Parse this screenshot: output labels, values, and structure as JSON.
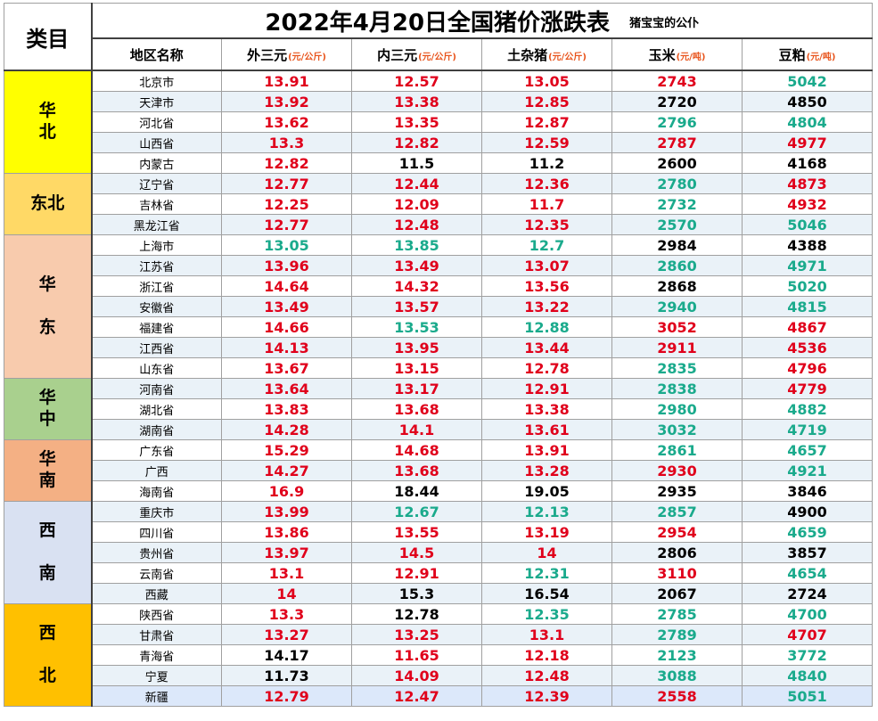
{
  "corner_label": "类目",
  "title": "2022年4月20日全国猪价涨跌表",
  "subtitle": "猪宝宝的公仆",
  "columns": [
    {
      "name": "地区名称",
      "unit": ""
    },
    {
      "name": "外三元",
      "unit": "(元/公斤)"
    },
    {
      "name": "内三元",
      "unit": "(元/公斤)"
    },
    {
      "name": "土杂猪",
      "unit": "(元/公斤)"
    },
    {
      "name": "玉米",
      "unit": "(元/吨)"
    },
    {
      "name": "豆粕",
      "unit": "(元/吨)"
    }
  ],
  "colors": {
    "up": "#e0001b",
    "down": "#1aaa8c",
    "flat": "#000000"
  },
  "regions": [
    {
      "label": "华\n北",
      "color": "#ffff00",
      "rows": 5
    },
    {
      "label": "东北",
      "color": "#ffd966",
      "rows": 3
    },
    {
      "label": "华\n\n东",
      "color": "#f8cbad",
      "rows": 7
    },
    {
      "label": "华\n中",
      "color": "#a9d08e",
      "rows": 3
    },
    {
      "label": "华\n南",
      "color": "#f4b084",
      "rows": 3
    },
    {
      "label": "西\n\n南",
      "color": "#d9e1f2",
      "rows": 5
    },
    {
      "label": "西\n\n北",
      "color": "#ffc000",
      "rows": 5
    }
  ],
  "rows": [
    {
      "province": "北京市",
      "values": [
        [
          "13.91",
          "red"
        ],
        [
          "12.57",
          "red"
        ],
        [
          "13.05",
          "red"
        ],
        [
          "2743",
          "red"
        ],
        [
          "5042",
          "green"
        ]
      ]
    },
    {
      "province": "天津市",
      "values": [
        [
          "13.92",
          "red"
        ],
        [
          "13.38",
          "red"
        ],
        [
          "12.85",
          "red"
        ],
        [
          "2720",
          "black"
        ],
        [
          "4850",
          "black"
        ]
      ]
    },
    {
      "province": "河北省",
      "values": [
        [
          "13.62",
          "red"
        ],
        [
          "13.35",
          "red"
        ],
        [
          "12.87",
          "red"
        ],
        [
          "2796",
          "green"
        ],
        [
          "4804",
          "green"
        ]
      ]
    },
    {
      "province": "山西省",
      "values": [
        [
          "13.3",
          "red"
        ],
        [
          "12.82",
          "red"
        ],
        [
          "12.59",
          "red"
        ],
        [
          "2787",
          "red"
        ],
        [
          "4977",
          "red"
        ]
      ]
    },
    {
      "province": "内蒙古",
      "values": [
        [
          "12.82",
          "red"
        ],
        [
          "11.5",
          "black"
        ],
        [
          "11.2",
          "black"
        ],
        [
          "2600",
          "black"
        ],
        [
          "4168",
          "black"
        ]
      ]
    },
    {
      "province": "辽宁省",
      "values": [
        [
          "12.77",
          "red"
        ],
        [
          "12.44",
          "red"
        ],
        [
          "12.36",
          "red"
        ],
        [
          "2780",
          "green"
        ],
        [
          "4873",
          "red"
        ]
      ]
    },
    {
      "province": "吉林省",
      "values": [
        [
          "12.25",
          "red"
        ],
        [
          "12.09",
          "red"
        ],
        [
          "11.7",
          "red"
        ],
        [
          "2732",
          "green"
        ],
        [
          "4932",
          "red"
        ]
      ]
    },
    {
      "province": "黑龙江省",
      "values": [
        [
          "12.77",
          "red"
        ],
        [
          "12.48",
          "red"
        ],
        [
          "12.35",
          "red"
        ],
        [
          "2570",
          "green"
        ],
        [
          "5046",
          "green"
        ]
      ]
    },
    {
      "province": "上海市",
      "values": [
        [
          "13.05",
          "green"
        ],
        [
          "13.85",
          "green"
        ],
        [
          "12.7",
          "green"
        ],
        [
          "2984",
          "black"
        ],
        [
          "4388",
          "black"
        ]
      ]
    },
    {
      "province": "江苏省",
      "values": [
        [
          "13.96",
          "red"
        ],
        [
          "13.49",
          "red"
        ],
        [
          "13.07",
          "red"
        ],
        [
          "2860",
          "green"
        ],
        [
          "4971",
          "green"
        ]
      ]
    },
    {
      "province": "浙江省",
      "values": [
        [
          "14.64",
          "red"
        ],
        [
          "14.32",
          "red"
        ],
        [
          "13.56",
          "red"
        ],
        [
          "2868",
          "black"
        ],
        [
          "5020",
          "green"
        ]
      ]
    },
    {
      "province": "安徽省",
      "values": [
        [
          "13.49",
          "red"
        ],
        [
          "13.57",
          "red"
        ],
        [
          "13.22",
          "red"
        ],
        [
          "2940",
          "green"
        ],
        [
          "4815",
          "green"
        ]
      ]
    },
    {
      "province": "福建省",
      "values": [
        [
          "14.66",
          "red"
        ],
        [
          "13.53",
          "green"
        ],
        [
          "12.88",
          "green"
        ],
        [
          "3052",
          "red"
        ],
        [
          "4867",
          "red"
        ]
      ]
    },
    {
      "province": "江西省",
      "values": [
        [
          "14.13",
          "red"
        ],
        [
          "13.95",
          "red"
        ],
        [
          "13.44",
          "red"
        ],
        [
          "2911",
          "red"
        ],
        [
          "4536",
          "red"
        ]
      ]
    },
    {
      "province": "山东省",
      "values": [
        [
          "13.67",
          "red"
        ],
        [
          "13.15",
          "red"
        ],
        [
          "12.78",
          "red"
        ],
        [
          "2835",
          "green"
        ],
        [
          "4796",
          "red"
        ]
      ]
    },
    {
      "province": "河南省",
      "values": [
        [
          "13.64",
          "red"
        ],
        [
          "13.17",
          "red"
        ],
        [
          "12.91",
          "red"
        ],
        [
          "2838",
          "green"
        ],
        [
          "4779",
          "red"
        ]
      ]
    },
    {
      "province": "湖北省",
      "values": [
        [
          "13.83",
          "red"
        ],
        [
          "13.68",
          "red"
        ],
        [
          "13.38",
          "red"
        ],
        [
          "2980",
          "green"
        ],
        [
          "4882",
          "green"
        ]
      ]
    },
    {
      "province": "湖南省",
      "values": [
        [
          "14.28",
          "red"
        ],
        [
          "14.1",
          "red"
        ],
        [
          "13.61",
          "red"
        ],
        [
          "3032",
          "green"
        ],
        [
          "4719",
          "green"
        ]
      ]
    },
    {
      "province": "广东省",
      "values": [
        [
          "15.29",
          "red"
        ],
        [
          "14.68",
          "red"
        ],
        [
          "13.91",
          "red"
        ],
        [
          "2861",
          "green"
        ],
        [
          "4657",
          "green"
        ]
      ]
    },
    {
      "province": "广西",
      "values": [
        [
          "14.27",
          "red"
        ],
        [
          "13.68",
          "red"
        ],
        [
          "13.28",
          "red"
        ],
        [
          "2930",
          "red"
        ],
        [
          "4921",
          "green"
        ]
      ]
    },
    {
      "province": "海南省",
      "values": [
        [
          "16.9",
          "red"
        ],
        [
          "18.44",
          "black"
        ],
        [
          "19.05",
          "black"
        ],
        [
          "2935",
          "black"
        ],
        [
          "3846",
          "black"
        ]
      ]
    },
    {
      "province": "重庆市",
      "values": [
        [
          "13.99",
          "red"
        ],
        [
          "12.67",
          "green"
        ],
        [
          "12.13",
          "green"
        ],
        [
          "2857",
          "green"
        ],
        [
          "4900",
          "black"
        ]
      ]
    },
    {
      "province": "四川省",
      "values": [
        [
          "13.86",
          "red"
        ],
        [
          "13.55",
          "red"
        ],
        [
          "13.19",
          "red"
        ],
        [
          "2954",
          "red"
        ],
        [
          "4659",
          "green"
        ]
      ]
    },
    {
      "province": "贵州省",
      "values": [
        [
          "13.97",
          "red"
        ],
        [
          "14.5",
          "red"
        ],
        [
          "14",
          "red"
        ],
        [
          "2806",
          "black"
        ],
        [
          "3857",
          "black"
        ]
      ]
    },
    {
      "province": "云南省",
      "values": [
        [
          "13.1",
          "red"
        ],
        [
          "12.91",
          "red"
        ],
        [
          "12.31",
          "green"
        ],
        [
          "3110",
          "red"
        ],
        [
          "4654",
          "green"
        ]
      ]
    },
    {
      "province": "西藏",
      "values": [
        [
          "14",
          "red"
        ],
        [
          "15.3",
          "black"
        ],
        [
          "16.54",
          "black"
        ],
        [
          "2067",
          "black"
        ],
        [
          "2724",
          "black"
        ]
      ]
    },
    {
      "province": "陕西省",
      "values": [
        [
          "13.3",
          "red"
        ],
        [
          "12.78",
          "black"
        ],
        [
          "12.35",
          "green"
        ],
        [
          "2785",
          "green"
        ],
        [
          "4700",
          "green"
        ]
      ]
    },
    {
      "province": "甘肃省",
      "values": [
        [
          "13.27",
          "red"
        ],
        [
          "13.25",
          "red"
        ],
        [
          "13.1",
          "red"
        ],
        [
          "2789",
          "green"
        ],
        [
          "4707",
          "red"
        ]
      ]
    },
    {
      "province": "青海省",
      "values": [
        [
          "14.17",
          "black"
        ],
        [
          "11.65",
          "red"
        ],
        [
          "12.18",
          "red"
        ],
        [
          "2123",
          "green"
        ],
        [
          "3772",
          "green"
        ]
      ]
    },
    {
      "province": "宁夏",
      "values": [
        [
          "11.73",
          "black"
        ],
        [
          "14.09",
          "red"
        ],
        [
          "12.48",
          "red"
        ],
        [
          "3088",
          "green"
        ],
        [
          "4840",
          "green"
        ]
      ]
    },
    {
      "province": "新疆",
      "values": [
        [
          "12.79",
          "red"
        ],
        [
          "12.47",
          "red"
        ],
        [
          "12.39",
          "red"
        ],
        [
          "2558",
          "red"
        ],
        [
          "5051",
          "green"
        ]
      ]
    }
  ]
}
